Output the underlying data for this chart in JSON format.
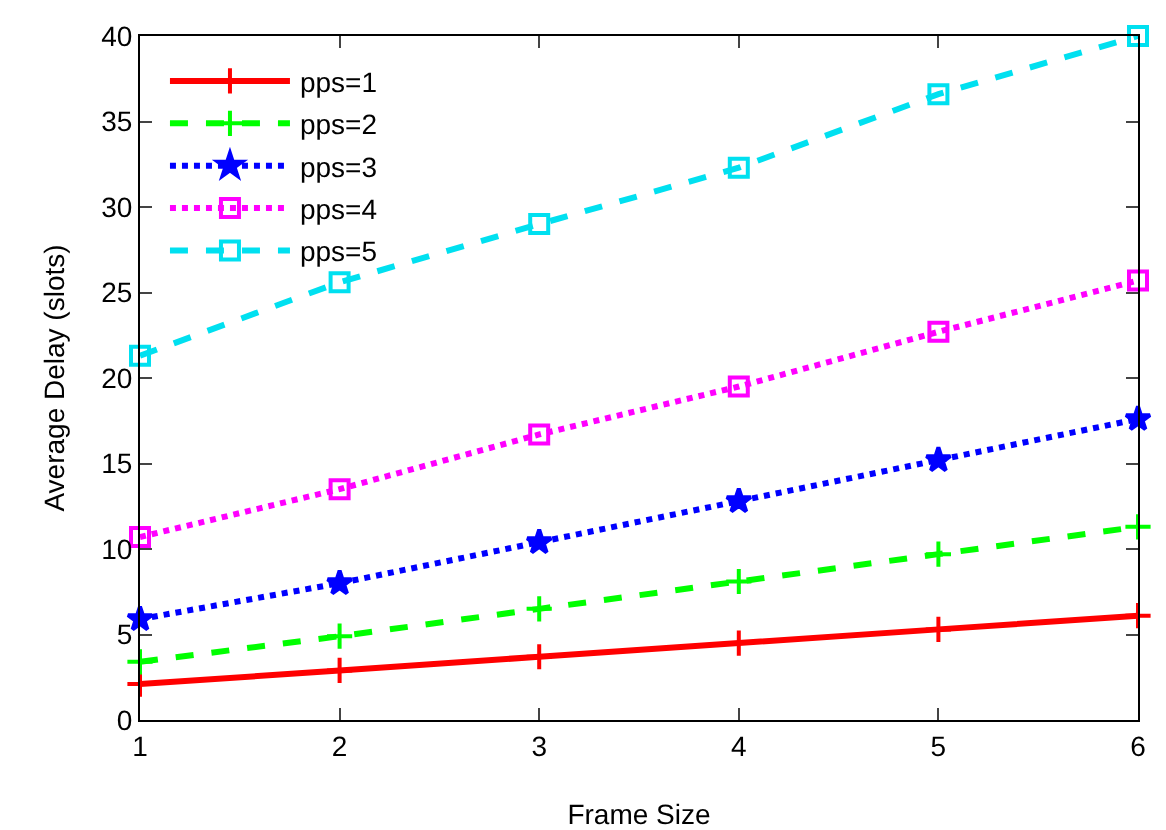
{
  "chart_data": {
    "type": "line",
    "xlabel": "Frame Size",
    "ylabel": "Average Delay (slots)",
    "x": [
      1,
      2,
      3,
      4,
      5,
      6
    ],
    "series": [
      {
        "name": "pps=1",
        "color": "#ff0000",
        "marker": "cross",
        "line_style": "solid",
        "values": [
          2.1,
          2.9,
          3.7,
          4.5,
          5.3,
          6.1
        ]
      },
      {
        "name": "pps=2",
        "color": "#00ff00",
        "marker": "cross",
        "line_style": "dashed",
        "values": [
          3.4,
          4.9,
          6.5,
          8.1,
          9.7,
          11.3
        ]
      },
      {
        "name": "pps=3",
        "color": "#0000ff",
        "marker": "star",
        "line_style": "dotted",
        "values": [
          5.9,
          8.0,
          10.4,
          12.8,
          15.2,
          17.6
        ]
      },
      {
        "name": "pps=4",
        "color": "#ff00ff",
        "marker": "square",
        "line_style": "dotted",
        "values": [
          10.7,
          13.5,
          16.7,
          19.5,
          22.7,
          25.7
        ]
      },
      {
        "name": "pps=5",
        "color": "#00e0f0",
        "marker": "square",
        "line_style": "dashed",
        "values": [
          21.3,
          25.6,
          29.0,
          32.3,
          36.6,
          40.0
        ]
      }
    ],
    "xlim": [
      1,
      6
    ],
    "xticks": [
      1,
      2,
      3,
      4,
      5,
      6
    ],
    "ylim": [
      0,
      40
    ],
    "yticks": [
      0,
      5,
      10,
      15,
      20,
      25,
      30,
      35,
      40
    ],
    "grid": false,
    "legend": "top left"
  }
}
